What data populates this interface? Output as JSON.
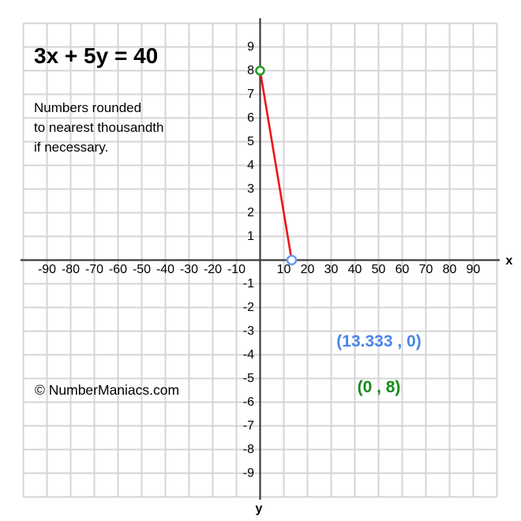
{
  "title": "3x + 5y = 40",
  "note_lines": [
    "Numbers rounded",
    "to nearest thousandth",
    "if necessary."
  ],
  "watermark": "© NumberManiacs.com",
  "annotations": {
    "x_intercept": {
      "text": "(13.333 , 0)",
      "color": "#4a86e8"
    },
    "y_intercept": {
      "text": "(0 , 8)",
      "color": "#168a16"
    }
  },
  "colors": {
    "grid": "#d4d4d4",
    "axis": "#3c3c3c",
    "background": "#ffffff"
  },
  "chart_data": {
    "type": "line",
    "title": "3x + 5y = 40",
    "equation": "3x + 5y = 40",
    "series": [
      {
        "name": "3x + 5y = 40",
        "points": [
          [
            0,
            8
          ],
          [
            13.333,
            0
          ]
        ],
        "color": "#ee1414"
      }
    ],
    "x_intercept": {
      "point": [
        13.333,
        0
      ],
      "label": "(13.333 , 0)",
      "marker_color": "#6d9eeb"
    },
    "y_intercept": {
      "point": [
        0,
        8
      ],
      "label": "(0 , 8)",
      "marker_color": "#21a121"
    },
    "x_ticks": [
      -90,
      -80,
      -70,
      -60,
      -50,
      -40,
      -30,
      -20,
      -10,
      10,
      20,
      30,
      40,
      50,
      60,
      70,
      80,
      90
    ],
    "y_ticks": [
      9,
      8,
      7,
      6,
      5,
      4,
      3,
      2,
      1,
      -1,
      -2,
      -3,
      -4,
      -5,
      -6,
      -7,
      -8,
      -9
    ],
    "x_range": [
      -100,
      100
    ],
    "y_range": [
      -10,
      10
    ],
    "x_tick_step": 10,
    "y_tick_step": 1,
    "grid": true,
    "axis_label_x": "x",
    "axis_label_y": "y",
    "legend": "none"
  }
}
